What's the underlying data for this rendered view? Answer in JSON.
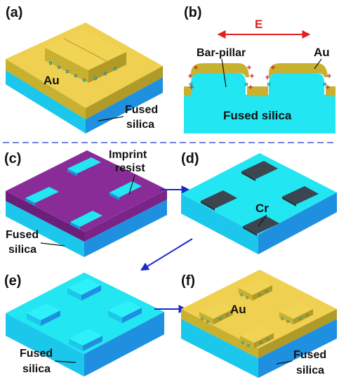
{
  "panels": [
    "(a)",
    "(b)",
    "(c)",
    "(d)",
    "(e)",
    "(f)"
  ],
  "labels": {
    "a_metal": "Au",
    "a_substrate_1": "Fused",
    "a_substrate_2": "silica",
    "b_field": "E",
    "b_pillar": "Bar-pillar",
    "b_metal": "Au",
    "b_substrate": "Fused silica",
    "c_resist_1": "Imprint",
    "c_resist_2": "resist",
    "c_substrate_1": "Fused",
    "c_substrate_2": "silica",
    "d_mask": "Cr",
    "e_substrate_1": "Fused",
    "e_substrate_2": "silica",
    "f_metal": "Au",
    "f_substrate_1": "Fused",
    "f_substrate_2": "silica"
  },
  "colors": {
    "gold": "#f0d050",
    "gold_side": "#c8b030",
    "gold_side2": "#b09a28",
    "cyan_top": "#22e6f2",
    "cyan_side": "#1bc7ea",
    "blue_side": "#1f8fe0",
    "blue_side2": "#1a7bd0",
    "purple_top": "#8a2c98",
    "purple_side": "#6a1f78",
    "cr": "#3b4650",
    "arrow": "#1a28c8",
    "field_arrow": "#e02020",
    "divider": "#4a56d8"
  }
}
